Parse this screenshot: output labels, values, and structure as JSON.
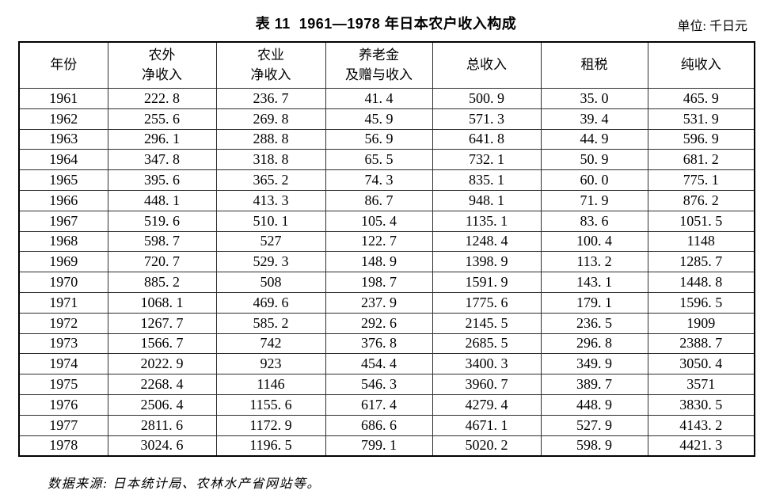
{
  "page": {
    "title": "表 11  1961—1978 年日本农户收入构成",
    "unit_note": "单位: 千日元",
    "source_note": "数据来源: 日本统计局、农林水产省网站等。"
  },
  "table": {
    "columns": [
      {
        "key": "year",
        "label": "年份"
      },
      {
        "key": "nonfarm-net-income",
        "label": "农外\n净收入"
      },
      {
        "key": "farm-net-income",
        "label": "农业\n净收入"
      },
      {
        "key": "pension-gift-income",
        "label": "养老金\n及赠与收入"
      },
      {
        "key": "total-income",
        "label": "总收入"
      },
      {
        "key": "taxes",
        "label": "租税"
      },
      {
        "key": "net-income",
        "label": "纯收入"
      }
    ],
    "rows": [
      [
        "1961",
        "222. 8",
        "236. 7",
        "41. 4",
        "500. 9",
        "35. 0",
        "465. 9"
      ],
      [
        "1962",
        "255. 6",
        "269. 8",
        "45. 9",
        "571. 3",
        "39. 4",
        "531. 9"
      ],
      [
        "1963",
        "296. 1",
        "288. 8",
        "56. 9",
        "641. 8",
        "44. 9",
        "596. 9"
      ],
      [
        "1964",
        "347. 8",
        "318. 8",
        "65. 5",
        "732. 1",
        "50. 9",
        "681. 2"
      ],
      [
        "1965",
        "395. 6",
        "365. 2",
        "74. 3",
        "835. 1",
        "60. 0",
        "775. 1"
      ],
      [
        "1966",
        "448. 1",
        "413. 3",
        "86. 7",
        "948. 1",
        "71. 9",
        "876. 2"
      ],
      [
        "1967",
        "519. 6",
        "510. 1",
        "105. 4",
        "1135. 1",
        "83. 6",
        "1051. 5"
      ],
      [
        "1968",
        "598. 7",
        "527",
        "122. 7",
        "1248. 4",
        "100. 4",
        "1148"
      ],
      [
        "1969",
        "720. 7",
        "529. 3",
        "148. 9",
        "1398. 9",
        "113. 2",
        "1285. 7"
      ],
      [
        "1970",
        "885. 2",
        "508",
        "198. 7",
        "1591. 9",
        "143. 1",
        "1448. 8"
      ],
      [
        "1971",
        "1068. 1",
        "469. 6",
        "237. 9",
        "1775. 6",
        "179. 1",
        "1596. 5"
      ],
      [
        "1972",
        "1267. 7",
        "585. 2",
        "292. 6",
        "2145. 5",
        "236. 5",
        "1909"
      ],
      [
        "1973",
        "1566. 7",
        "742",
        "376. 8",
        "2685. 5",
        "296. 8",
        "2388. 7"
      ],
      [
        "1974",
        "2022. 9",
        "923",
        "454. 4",
        "3400. 3",
        "349. 9",
        "3050. 4"
      ],
      [
        "1975",
        "2268. 4",
        "1146",
        "546. 3",
        "3960. 7",
        "389. 7",
        "3571"
      ],
      [
        "1976",
        "2506. 4",
        "1155. 6",
        "617. 4",
        "4279. 4",
        "448. 9",
        "3830. 5"
      ],
      [
        "1977",
        "2811. 6",
        "1172. 9",
        "686. 6",
        "4671. 1",
        "527. 9",
        "4143. 2"
      ],
      [
        "1978",
        "3024. 6",
        "1196. 5",
        "799. 1",
        "5020. 2",
        "598. 9",
        "4421. 3"
      ]
    ]
  }
}
